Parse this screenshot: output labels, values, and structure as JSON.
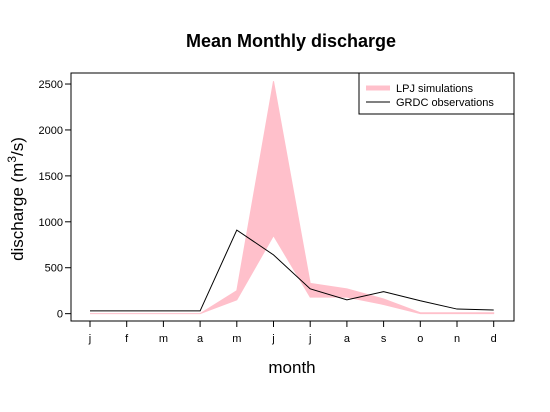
{
  "chart_data": {
    "type": "area",
    "title": "Mean Monthly discharge",
    "xlabel": "month",
    "ylabel": "discharge (m3/s)",
    "ylabel_parts": {
      "base": "discharge (m",
      "superscript": "3",
      "tail": "/s)"
    },
    "categories": [
      "j",
      "f",
      "m",
      "a",
      "m",
      "j",
      "j",
      "a",
      "s",
      "o",
      "n",
      "d"
    ],
    "ylim": [
      -80,
      2620
    ],
    "yticks": [
      0,
      500,
      1000,
      1500,
      2000,
      2500
    ],
    "grid": false,
    "legend_position": "top-right",
    "series": [
      {
        "name": "LPJ simulations",
        "kind": "band",
        "color": "#FFC0CB",
        "lower": [
          0,
          0,
          0,
          0,
          150,
          850,
          180,
          180,
          100,
          0,
          0,
          0
        ],
        "upper": [
          0,
          0,
          0,
          0,
          250,
          2530,
          330,
          270,
          160,
          10,
          10,
          10
        ]
      },
      {
        "name": "GRDC observations",
        "kind": "line",
        "color": "#000000",
        "values": [
          30,
          30,
          30,
          30,
          910,
          640,
          270,
          150,
          240,
          140,
          50,
          40
        ]
      }
    ]
  }
}
